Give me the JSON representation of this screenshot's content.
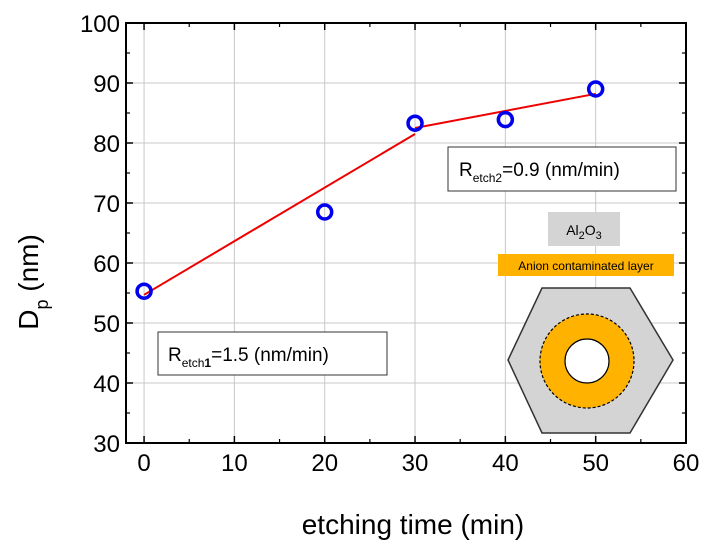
{
  "chart_data": {
    "type": "scatter",
    "xlabel": "etching time (min)",
    "ylabel_main": "D",
    "ylabel_sub": "p",
    "ylabel_unit": "(nm)",
    "xlim": [
      -2,
      60
    ],
    "ylim": [
      30,
      100
    ],
    "x_ticks": [
      0,
      10,
      20,
      30,
      40,
      50,
      60
    ],
    "y_ticks": [
      30,
      40,
      50,
      60,
      70,
      80,
      90,
      100
    ],
    "grid": true,
    "points": [
      {
        "x": 0,
        "y": 55.3
      },
      {
        "x": 20,
        "y": 68.5
      },
      {
        "x": 30,
        "y": 83.3
      },
      {
        "x": 40,
        "y": 83.9
      },
      {
        "x": 50,
        "y": 89.0
      }
    ],
    "fit_segments": [
      {
        "x": [
          0,
          30
        ],
        "y": [
          54.7,
          81.5
        ]
      },
      {
        "x": [
          30,
          50
        ],
        "y": [
          82.5,
          88.2
        ]
      }
    ],
    "annotations": {
      "rate1_prefix": "R",
      "rate1_sub_a": "etch",
      "rate1_sub_b": "1",
      "rate1_value": "=1.5 (nm/min)",
      "rate2_prefix": "R",
      "rate2_sub": "etch2",
      "rate2_value": "=0.9 (nm/min)"
    },
    "inset": {
      "al2o3_a": "Al",
      "al2o3_sub1": "2",
      "al2o3_b": "O",
      "al2o3_sub2": "3",
      "layer_label": "Anion contaminated layer"
    },
    "colors": {
      "marker": "#0000ee",
      "fit_line": "#ee0000",
      "grid": "#c8c8c8",
      "shell": "#d4d4d4",
      "contaminated_layer": "#ffb300"
    }
  }
}
